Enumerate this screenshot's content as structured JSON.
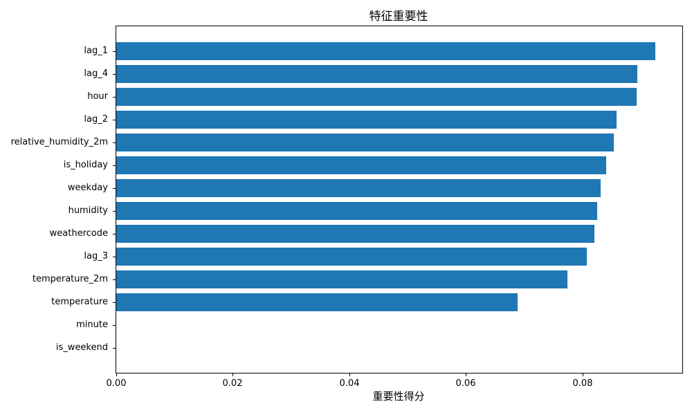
{
  "figure": {
    "title": "特征重要性",
    "xlabel": "重要性得分"
  },
  "chart_data": {
    "type": "bar",
    "orientation": "horizontal",
    "title": "特征重要性",
    "xlabel": "重要性得分",
    "ylabel": "",
    "categories": [
      "lag_1",
      "lag_4",
      "hour",
      "lag_2",
      "relative_humidity_2m",
      "is_holiday",
      "weekday",
      "humidity",
      "weathercode",
      "lag_3",
      "temperature_2m",
      "temperature",
      "minute",
      "is_weekend"
    ],
    "values": [
      0.0925,
      0.0894,
      0.0893,
      0.0858,
      0.0853,
      0.0841,
      0.0831,
      0.0825,
      0.082,
      0.0807,
      0.0774,
      0.0688,
      0.0,
      0.0
    ],
    "xticks": [
      0.0,
      0.02,
      0.04,
      0.06,
      0.08
    ],
    "xtick_labels": [
      "0.00",
      "0.02",
      "0.04",
      "0.06",
      "0.08"
    ],
    "xlim": [
      0,
      0.0971
    ],
    "bar_color": "#1f77b4",
    "grid": false,
    "legend": "none"
  }
}
